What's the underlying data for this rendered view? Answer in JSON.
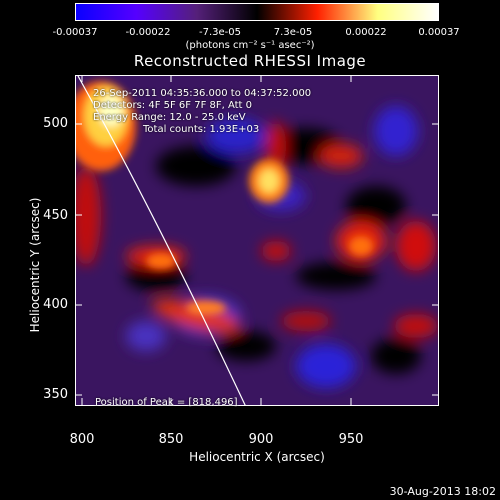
{
  "colorbar": {
    "ticks": [
      "-0.00037",
      "-0.00022",
      "-7.3e-05",
      "7.3e-05",
      "0.00022",
      "0.00037"
    ],
    "unit": "(photons cm⁻² s⁻¹ asec⁻²)",
    "colors": [
      "#0a00ff",
      "#5500ff",
      "#55207a",
      "#000000",
      "#ff2000",
      "#ffff80",
      "#ffffff"
    ]
  },
  "title": "Reconstructed RHESSI Image",
  "annotations": {
    "time": "26-Sep-2011 04:35:36.000 to 04:37:52.000",
    "detectors": "Detectors: 4F 5F 6F 7F 8F, Att 0",
    "energy": "Energy Range: 12.0 - 25.0 keV",
    "counts": "Total counts: 1.93E+03",
    "peak": "Position of Peak = [818,496]"
  },
  "axes": {
    "xlabel": "Heliocentric X (arcsec)",
    "ylabel": "Heliocentric Y (arcsec)",
    "xticks": [
      "800",
      "850",
      "900",
      "950"
    ],
    "yticks": [
      "500",
      "450",
      "400",
      "350"
    ]
  },
  "footer": "30-Aug-2013 18:02"
}
